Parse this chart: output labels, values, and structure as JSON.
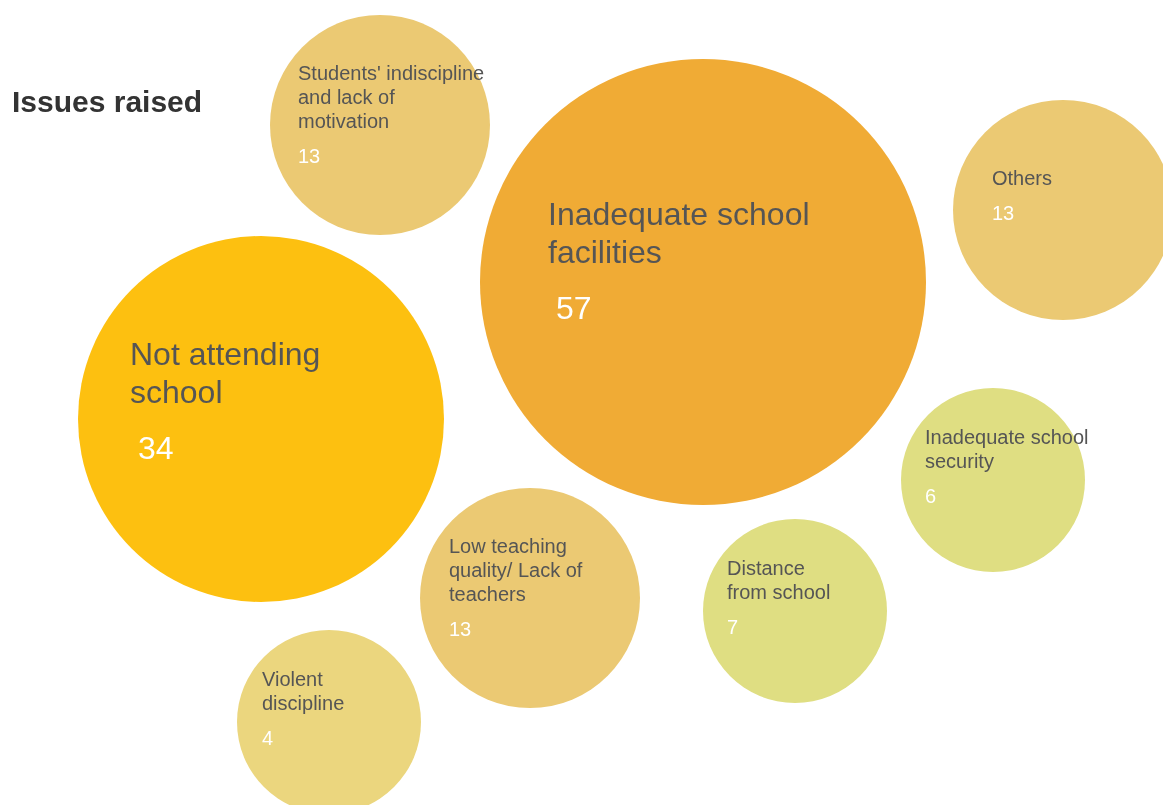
{
  "chart_data": {
    "type": "other",
    "title": "Issues raised",
    "categories": [
      "Students' indiscipline and lack of motivation",
      "Inadequate school facilities",
      "Others",
      "Not attending school",
      "Inadequate school security",
      "Low teaching quality/ Lack of teachers",
      "Distance from school",
      "Violent discipline"
    ],
    "values": [
      13,
      57,
      13,
      34,
      6,
      13,
      7,
      4
    ],
    "colors": [
      "#ebc973",
      "#f0ab35",
      "#ebc973",
      "#fdc010",
      "#dfde82",
      "#ebc973",
      "#dfde82",
      "#ebd67e"
    ],
    "data_labels": true
  }
}
